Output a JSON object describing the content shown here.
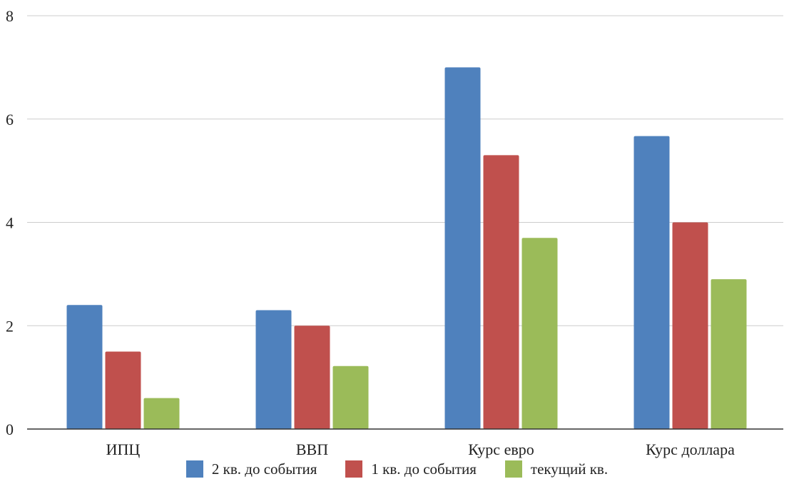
{
  "chart_data": {
    "type": "bar",
    "categories": [
      "ИПЦ",
      "ВВП",
      "Курс евро",
      "Курс доллара"
    ],
    "series": [
      {
        "name": "2 кв. до события",
        "color": "#4f81bd",
        "values": [
          2.4,
          2.3,
          7.0,
          5.67
        ]
      },
      {
        "name": "1 кв. до события",
        "color": "#c0504d",
        "values": [
          1.5,
          2.0,
          5.3,
          4.0
        ]
      },
      {
        "name": "текущий кв.",
        "color": "#9bbb59",
        "values": [
          0.6,
          1.22,
          3.7,
          2.9
        ]
      }
    ],
    "ylim": [
      0,
      8
    ],
    "yticks": [
      "0",
      "2",
      "4",
      "6",
      "8"
    ],
    "grid": true,
    "legend_position": "bottom"
  }
}
